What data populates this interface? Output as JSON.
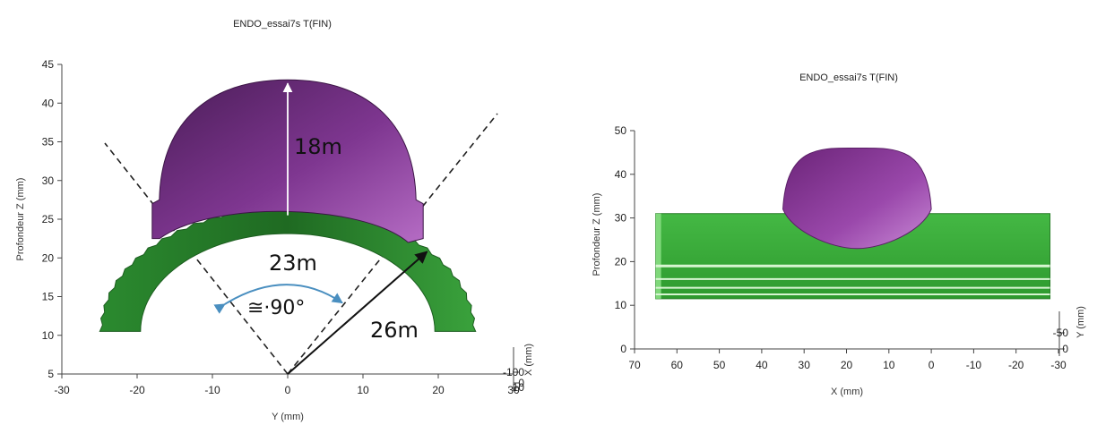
{
  "chart_data": [
    {
      "type": "area",
      "title": "ENDO_essai7s T(FIN)",
      "xlabel": "Y (mm)",
      "ylabel": "Profondeur Z (mm)",
      "depth_axis_label": "X (mm)",
      "xlim": [
        -30,
        30
      ],
      "ylim": [
        5,
        45
      ],
      "x_ticks": [
        "-30",
        "-20",
        "-10",
        "0",
        "10",
        "20",
        "30"
      ],
      "y_ticks": [
        "5",
        "10",
        "15",
        "20",
        "25",
        "30",
        "35",
        "40",
        "45"
      ],
      "depth_ticks": [
        "-100",
        "0",
        "10"
      ],
      "grid": false,
      "colors": {
        "bulb": "#7a2f87",
        "bulb_light": "#b15cbf",
        "arc": "#2f8a33",
        "arc_light": "#5dc15f",
        "sector": "#4a8fc0"
      },
      "annotations": [
        {
          "text": "18m",
          "x": 0,
          "y": 43,
          "to_y": 25.5
        },
        {
          "text": "23m"
        },
        {
          "text": "≅·90°"
        },
        {
          "text": "26m",
          "from": [
            0,
            5
          ],
          "to": [
            18.5,
            20.8
          ]
        }
      ],
      "arc_outer_radius": 26,
      "arc_inner_radius": 23,
      "bulb_peak_z": 43,
      "bulb_base_z": 22.5,
      "bulb_half_width": 18,
      "cone_apex": [
        0,
        5
      ]
    },
    {
      "type": "area",
      "title": "ENDO_essai7s T(FIN)",
      "xlabel": "X (mm)",
      "ylabel": "Profondeur Z (mm)",
      "depth_axis_label": "Y (mm)",
      "xlim": [
        70,
        -30
      ],
      "ylim": [
        0,
        50
      ],
      "x_ticks": [
        "70",
        "60",
        "50",
        "40",
        "30",
        "20",
        "10",
        "0",
        "-10",
        "-20",
        "-30"
      ],
      "y_ticks": [
        "0",
        "10",
        "20",
        "30",
        "40",
        "50"
      ],
      "depth_ticks": [
        "-50",
        "0"
      ],
      "grid": false,
      "colors": {
        "bulb": "#8a3a9a",
        "slab": "#3bb23b",
        "slab_light": "#8fe08a"
      },
      "slab": {
        "x_start": 65,
        "x_end": -28,
        "z_bottom": 11.5,
        "z_top": 31,
        "stripes_z": [
          19,
          16,
          14,
          12.5
        ]
      },
      "bulb": {
        "x_left": 35,
        "x_right": 0,
        "z_base": 23,
        "z_peak": 46
      }
    }
  ]
}
